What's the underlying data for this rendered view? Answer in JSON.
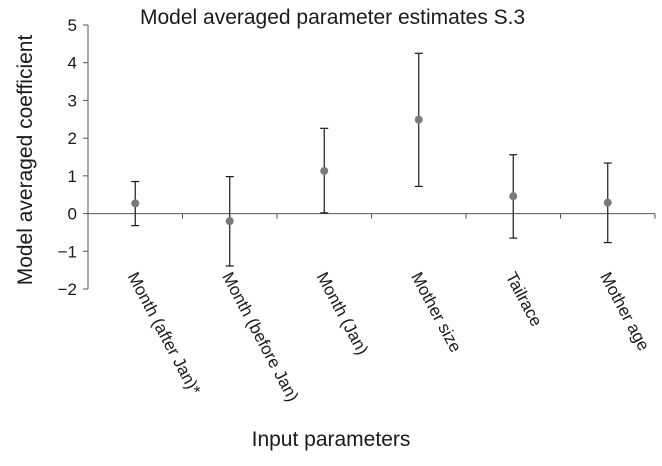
{
  "chart_data": {
    "type": "scatter",
    "title": "Model averaged parameter estimates S.3",
    "xlabel": "Input parameters",
    "ylabel": "Model averaged coefficient",
    "ylim": [
      -2,
      5
    ],
    "yticks": [
      "5",
      "4",
      "3",
      "2",
      "1",
      "0",
      "−1",
      "−2"
    ],
    "grid": false,
    "categories": [
      "Month (after Jan)*",
      "Month (before Jan)",
      "Month (Jan)",
      "Mother size",
      "Tailrace",
      "Mother age"
    ],
    "series": [
      {
        "values": [
          0.27,
          -0.2,
          1.13,
          2.49,
          0.46,
          0.29
        ],
        "lower": [
          -0.32,
          -1.39,
          0.02,
          0.72,
          -0.65,
          -0.77
        ],
        "upper": [
          0.85,
          0.98,
          2.26,
          4.25,
          1.56,
          1.34
        ]
      }
    ],
    "colors": {
      "point": "#7a7a7a",
      "errorbar": "#1a1a1a",
      "axis": "#555555"
    }
  }
}
